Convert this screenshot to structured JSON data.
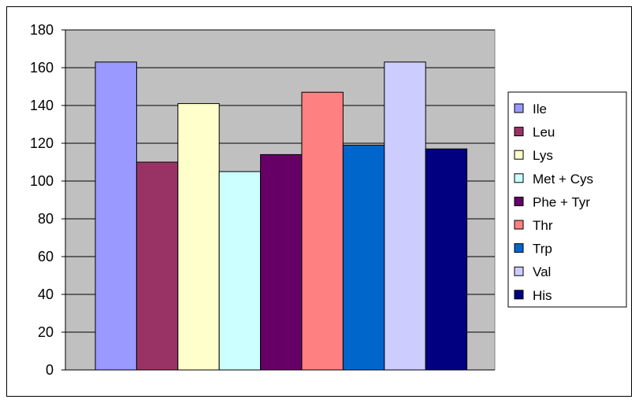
{
  "chart_data": {
    "type": "bar",
    "title": "",
    "xlabel": "",
    "ylabel": "",
    "ylim": [
      0,
      180
    ],
    "y_ticks": [
      0,
      20,
      40,
      60,
      80,
      100,
      120,
      140,
      160,
      180
    ],
    "grid": true,
    "legend_position": "right",
    "plot_background": "#c0c0c0",
    "series": [
      {
        "name": "Ile",
        "value": 163,
        "color": "#9999ff"
      },
      {
        "name": "Leu",
        "value": 110,
        "color": "#993366"
      },
      {
        "name": "Lys",
        "value": 141,
        "color": "#ffffcc"
      },
      {
        "name": "Met + Cys",
        "value": 105,
        "color": "#ccffff"
      },
      {
        "name": "Phe + Tyr",
        "value": 114,
        "color": "#660066"
      },
      {
        "name": "Thr",
        "value": 147,
        "color": "#ff8080"
      },
      {
        "name": "Trp",
        "value": 119,
        "color": "#0066cc"
      },
      {
        "name": "Val",
        "value": 163,
        "color": "#ccccff"
      },
      {
        "name": "His",
        "value": 117,
        "color": "#000080"
      }
    ]
  }
}
